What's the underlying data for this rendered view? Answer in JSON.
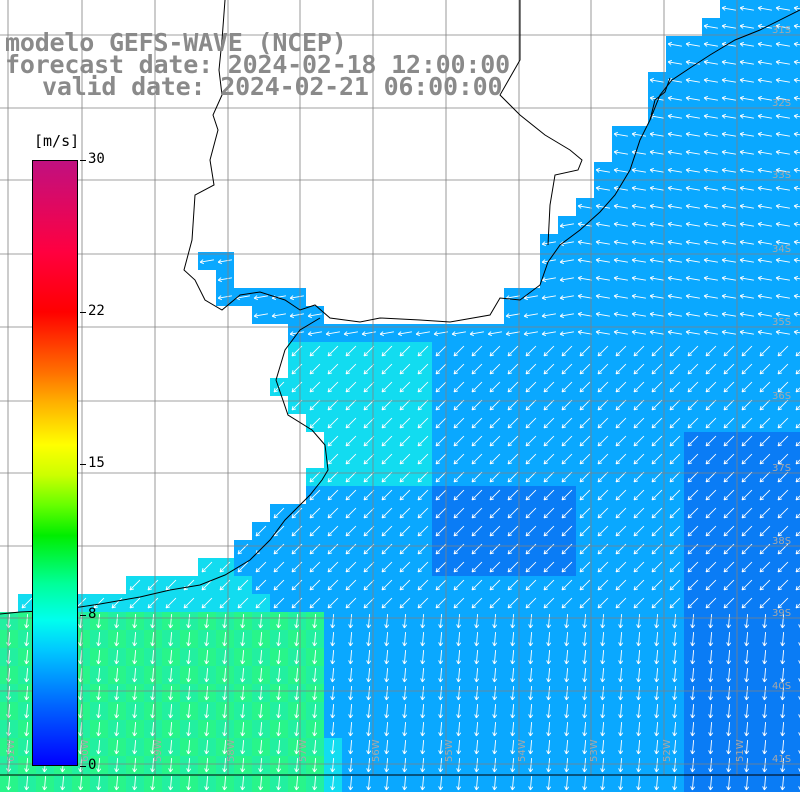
{
  "title": {
    "model": "modelo GEFS-WAVE (NCEP)",
    "forecast": "forecast date: 2024-02-18 12:00:00",
    "valid": "valid date: 2024-02-21 06:00:00"
  },
  "colorbar": {
    "unit": "[m/s]",
    "ticks": [
      "30",
      "22",
      "15",
      "8",
      "0"
    ],
    "tick_values": [
      30,
      22,
      15,
      8,
      0
    ],
    "range": [
      0,
      30
    ],
    "colors": {
      "v0": "#0000ff",
      "v3": "#0066ff",
      "v6": "#00c8ff",
      "v8": "#00ffee",
      "v10": "#00ee00",
      "v15": "#ffff00",
      "v20": "#ff7000",
      "v22": "#ff0000",
      "v30": "#c01080"
    }
  },
  "map": {
    "lat_labels": [
      "31S",
      "32S",
      "33S",
      "34S",
      "35S",
      "36S",
      "37S",
      "38S",
      "39S",
      "40S",
      "41S"
    ],
    "lon_labels": [
      "61W",
      "60W",
      "59W",
      "58W",
      "57W",
      "56W",
      "55W",
      "54W",
      "53W",
      "52W",
      "51W"
    ],
    "land_color": "#ffffff",
    "coast_color": "#000000",
    "grid_color": "#808080",
    "arrow_color": "#ffffff",
    "field_colors": {
      "offshore_blue": "#0aa8ff",
      "deep_blue": "#0a7cf5",
      "cyan": "#12dcf0",
      "green": "#22f0a0",
      "bright_green": "#28f58a"
    }
  }
}
